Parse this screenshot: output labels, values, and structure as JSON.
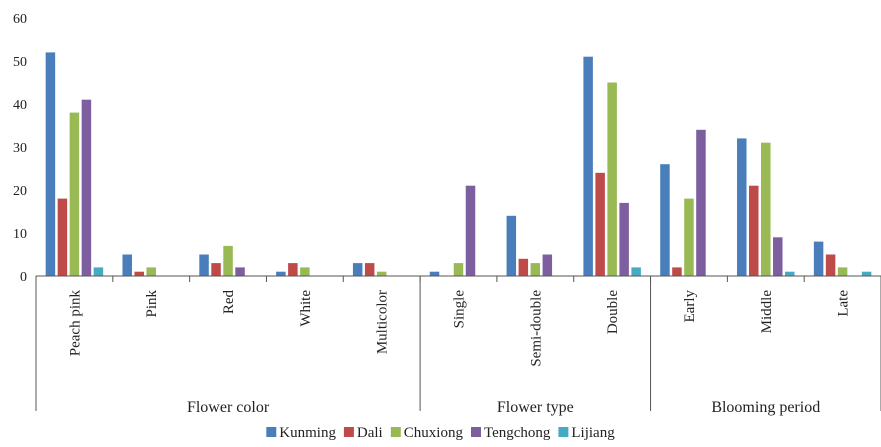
{
  "chart_data": {
    "type": "bar",
    "title": "",
    "xlabel": "",
    "ylabel": "",
    "ylim": [
      0,
      60
    ],
    "yticks": [
      0,
      10,
      20,
      30,
      40,
      50,
      60
    ],
    "grid": false,
    "legend_position": "bottom",
    "groups": [
      {
        "label": "Flower color",
        "categories": [
          "Peach pink",
          "Pink",
          "Red",
          "White",
          "Multicolor"
        ]
      },
      {
        "label": "Flower type",
        "categories": [
          "Single",
          "Semi-double",
          "Double"
        ]
      },
      {
        "label": "Blooming period",
        "categories": [
          "Early",
          "Middle",
          "Late"
        ]
      }
    ],
    "categories": [
      "Peach pink",
      "Pink",
      "Red",
      "White",
      "Multicolor",
      "Single",
      "Semi-double",
      "Double",
      "Early",
      "Middle",
      "Late"
    ],
    "series": [
      {
        "name": "Kunming",
        "color": "#4a7ebb",
        "values": [
          52,
          5,
          5,
          1,
          3,
          1,
          14,
          51,
          26,
          32,
          8
        ]
      },
      {
        "name": "Dali",
        "color": "#be4b48",
        "values": [
          18,
          1,
          3,
          3,
          3,
          0,
          4,
          24,
          2,
          21,
          5
        ]
      },
      {
        "name": "Chuxiong",
        "color": "#98b954",
        "values": [
          38,
          2,
          7,
          2,
          1,
          3,
          3,
          45,
          18,
          31,
          2
        ]
      },
      {
        "name": "Tengchong",
        "color": "#7d5fa0",
        "values": [
          41,
          0,
          2,
          0,
          0,
          21,
          5,
          17,
          34,
          9,
          0
        ]
      },
      {
        "name": "Lijiang",
        "color": "#46aac5",
        "values": [
          2,
          0,
          0,
          0,
          0,
          0,
          0,
          2,
          0,
          1,
          1
        ]
      }
    ]
  }
}
